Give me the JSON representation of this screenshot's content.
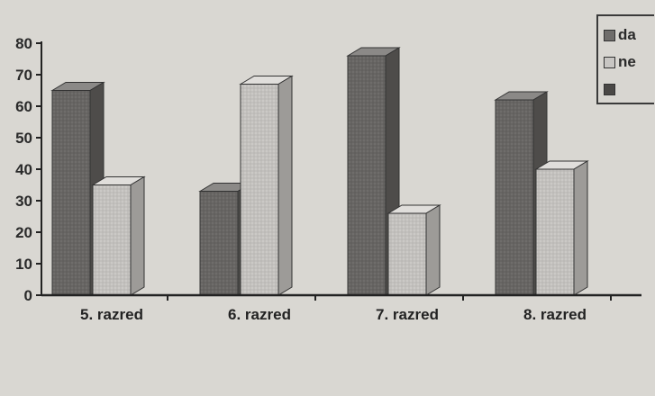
{
  "chart_data": {
    "type": "bar",
    "style": "3d-clustered",
    "categories": [
      "5. razred",
      "6. razred",
      "7. razred",
      "8. razred"
    ],
    "series": [
      {
        "name": "da",
        "values": [
          65,
          33,
          76,
          62
        ]
      },
      {
        "name": "ne",
        "values": [
          35,
          67,
          26,
          40
        ]
      },
      {
        "name": "",
        "values": [
          0,
          0,
          0,
          0
        ]
      }
    ],
    "ylim": [
      0,
      80
    ],
    "yticks": [
      0,
      10,
      20,
      30,
      40,
      50,
      60,
      70,
      80
    ],
    "xlabel": "",
    "ylabel": "",
    "legend_position": "top-right",
    "colors": {
      "da": "#6f6d6b",
      "ne": "#c8c6c3",
      "third": "#4a4846"
    }
  }
}
